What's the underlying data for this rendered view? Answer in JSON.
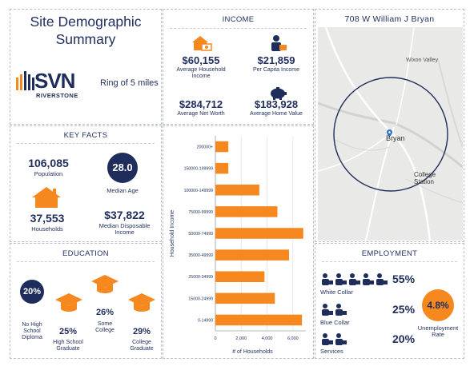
{
  "title": {
    "line1": "Site Demographic",
    "line2": "Summary"
  },
  "logo": {
    "brand": "SVN",
    "sub": "RIVERSTONE"
  },
  "ring": "Ring of 5 miles",
  "income": {
    "header": "INCOME",
    "avg_household_income": {
      "value": "$60,155",
      "label1": "Average Household",
      "label2": "Income"
    },
    "per_capita_income": {
      "value": "$21,859",
      "label": "Per Capita Income"
    },
    "avg_net_worth": {
      "value": "$284,712",
      "label": "Average Net Worth"
    },
    "avg_home_value": {
      "value": "$183,928",
      "label": "Average Home Value"
    }
  },
  "map": {
    "header": "708 W William J Bryan",
    "places": {
      "wixon": "Wixon Valley",
      "bryan": "Bryan",
      "college1": "College",
      "college2": "Station"
    }
  },
  "key_facts": {
    "header": "KEY FACTS",
    "population": {
      "value": "106,085",
      "label": "Population"
    },
    "median_age": {
      "value": "28.0",
      "label": "Median Age"
    },
    "households": {
      "value": "37,553",
      "label": "Households"
    },
    "median_disposable_income": {
      "value": "$37,822",
      "label1": "Median Disposable",
      "label2": "Income"
    }
  },
  "education": {
    "header": "EDUCATION",
    "no_hs": {
      "value": "20%",
      "label1": "No High",
      "label2": "School",
      "label3": "Diploma"
    },
    "hs_grad": {
      "value": "25%",
      "label1": "High School",
      "label2": "Graduate"
    },
    "some_college": {
      "value": "26%",
      "label1": "Some",
      "label2": "College"
    },
    "college_grad": {
      "value": "29%",
      "label1": "College",
      "label2": "Graduate"
    }
  },
  "employment": {
    "header": "EMPLOYMENT",
    "white_collar": {
      "value": "55%",
      "label": "White Collar"
    },
    "blue_collar": {
      "value": "25%",
      "label": "Blue Collar"
    },
    "services": {
      "value": "20%",
      "label": "Services"
    },
    "unemployment": {
      "value": "4.8%",
      "label1": "Unemployment",
      "label2": "Rate"
    }
  },
  "colors": {
    "navy": "#1f2d5c",
    "orange": "#f5891f"
  },
  "chart_data": {
    "type": "bar",
    "orientation": "horizontal",
    "categories": [
      "200000+",
      "150000-199999",
      "100000-149999",
      "75000-99999",
      "50000-74999",
      "35000-49999",
      "25000-34999",
      "15000-24999",
      "0-14999"
    ],
    "values": [
      1000,
      1000,
      3400,
      4800,
      6800,
      5700,
      3800,
      4600,
      6700
    ],
    "xlabel": "# of Households",
    "ylabel": "Household Income",
    "xlim": [
      0,
      7000
    ],
    "xticks": [
      "0",
      "2,000",
      "4,000",
      "6,000"
    ],
    "xtick_values": [
      0,
      2000,
      4000,
      6000
    ],
    "grid": "vertical",
    "legend": "none"
  }
}
